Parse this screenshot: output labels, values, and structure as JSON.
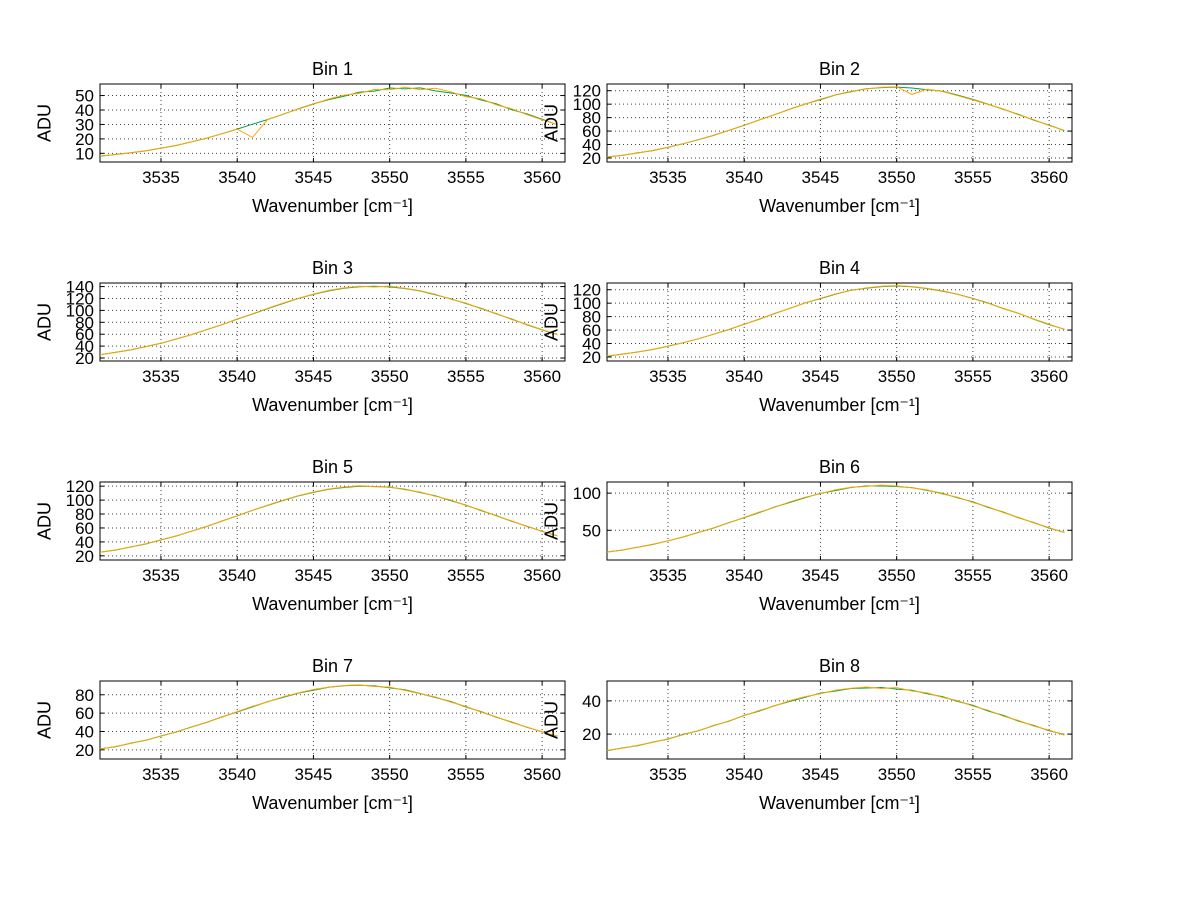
{
  "figure": {
    "background": "#ffffff",
    "grid_style": "dotted",
    "legend": "none"
  },
  "colors": {
    "axis": "#000000",
    "grid": "#444444",
    "trace_green": "#00a344",
    "trace_orange": "#ffa500"
  },
  "x_values": [
    3531,
    3532,
    3533,
    3534,
    3535,
    3536,
    3537,
    3538,
    3539,
    3540,
    3541,
    3542,
    3543,
    3544,
    3545,
    3546,
    3547,
    3548,
    3549,
    3550,
    3551,
    3552,
    3553,
    3554,
    3555,
    3556,
    3557,
    3558,
    3559,
    3560,
    3561
  ],
  "chart_data": [
    {
      "type": "line",
      "title": "Bin 1",
      "xlabel": "Wavenumber [cm⁻¹]",
      "ylabel": "ADU",
      "xlim": [
        3531,
        3561.5
      ],
      "ylim": [
        4,
        58
      ],
      "xticks": [
        3535,
        3540,
        3545,
        3550,
        3555,
        3560
      ],
      "yticks": [
        10,
        20,
        30,
        40,
        50
      ],
      "series": [
        {
          "name": "trace-green",
          "color": "#00a344",
          "values": [
            8.0,
            9.2,
            10.4,
            11.7,
            13.6,
            15.4,
            18.0,
            20.5,
            23.6,
            26.8,
            30.2,
            33.4,
            37.0,
            40.8,
            44.2,
            47.2,
            49.5,
            52.4,
            53.1,
            55.2,
            54.6,
            55.3,
            53.2,
            51.8,
            50.1,
            46.9,
            44.3,
            40.2,
            37.3,
            33.6,
            29.8
          ]
        },
        {
          "name": "trace-orange",
          "color": "#ffa500",
          "values": [
            8.2,
            9.1,
            10.3,
            11.8,
            13.5,
            15.5,
            17.9,
            20.6,
            23.5,
            26.7,
            21.0,
            33.5,
            37.1,
            40.6,
            44.0,
            47.6,
            50.3,
            51.5,
            54.2,
            54.0,
            55.8,
            54.1,
            55.0,
            52.6,
            49.2,
            47.8,
            43.5,
            40.9,
            36.8,
            33.2,
            30.1
          ]
        }
      ]
    },
    {
      "type": "line",
      "title": "Bin 2",
      "xlabel": "Wavenumber [cm⁻¹]",
      "ylabel": "ADU",
      "xlim": [
        3531,
        3561.5
      ],
      "ylim": [
        14,
        130
      ],
      "xticks": [
        3535,
        3540,
        3545,
        3550,
        3555,
        3560
      ],
      "yticks": [
        20,
        40,
        60,
        80,
        100,
        120
      ],
      "series": [
        {
          "name": "trace-green",
          "color": "#00a344",
          "values": [
            21.5,
            23.8,
            27.5,
            31.0,
            36.0,
            41.0,
            47.3,
            53.6,
            61.2,
            68.4,
            76.7,
            84.3,
            92.7,
            100.3,
            106.6,
            113.8,
            118.5,
            123.0,
            124.6,
            125.4,
            124.0,
            121.5,
            119.2,
            113.5,
            107.2,
            100.0,
            92.2,
            84.8,
            76.2,
            68.9,
            60.7
          ]
        },
        {
          "name": "trace-orange",
          "color": "#ffa500",
          "values": [
            21.3,
            24.0,
            27.3,
            31.2,
            35.8,
            41.1,
            47.1,
            53.8,
            61.0,
            68.6,
            76.5,
            84.5,
            92.5,
            100.1,
            107.5,
            114.0,
            119.0,
            122.5,
            125.1,
            126.0,
            114.5,
            122.3,
            118.9,
            112.6,
            106.4,
            99.5,
            92.8,
            84.1,
            76.9,
            68.3,
            61.2
          ]
        }
      ]
    },
    {
      "type": "line",
      "title": "Bin 3",
      "xlabel": "Wavenumber [cm⁻¹]",
      "ylabel": "ADU",
      "xlim": [
        3531,
        3561.5
      ],
      "ylim": [
        15,
        146
      ],
      "xticks": [
        3535,
        3540,
        3545,
        3550,
        3555,
        3560
      ],
      "yticks": [
        20,
        40,
        60,
        80,
        100,
        120,
        140
      ],
      "series": [
        {
          "name": "trace-green",
          "color": "#00a344",
          "values": [
            25.4,
            29.5,
            33.6,
            39.2,
            44.7,
            52.0,
            59.1,
            67.7,
            75.9,
            85.3,
            94.0,
            103.0,
            111.5,
            119.9,
            126.9,
            132.8,
            137.2,
            139.6,
            140.4,
            139.5,
            136.8,
            132.5,
            126.2,
            119.4,
            111.6,
            103.4,
            94.1,
            85.5,
            75.8,
            67.3,
            59.5
          ]
        },
        {
          "name": "trace-orange",
          "color": "#ffa500",
          "values": [
            25.6,
            29.3,
            33.8,
            39.0,
            44.9,
            51.8,
            59.3,
            67.5,
            76.1,
            85.1,
            94.2,
            103.5,
            112.3,
            120.2,
            127.4,
            133.5,
            137.8,
            140.5,
            139.2,
            140.8,
            137.1,
            132.9,
            127.0,
            118.8,
            112.4,
            102.6,
            94.8,
            84.7,
            76.4,
            67.8,
            59.1
          ]
        }
      ]
    },
    {
      "type": "line",
      "title": "Bin 4",
      "xlabel": "Wavenumber [cm⁻¹]",
      "ylabel": "ADU",
      "xlim": [
        3531,
        3561.5
      ],
      "ylim": [
        14,
        130
      ],
      "xticks": [
        3535,
        3540,
        3545,
        3550,
        3555,
        3560
      ],
      "yticks": [
        20,
        40,
        60,
        80,
        100,
        120
      ],
      "series": [
        {
          "name": "trace-green",
          "color": "#00a344",
          "values": [
            21.2,
            24.2,
            27.4,
            31.1,
            36.1,
            41.2,
            47.0,
            53.9,
            60.8,
            68.8,
            76.3,
            84.7,
            92.4,
            100.4,
            106.8,
            113.5,
            119.3,
            122.2,
            124.7,
            125.6,
            124.3,
            121.7,
            118.0,
            113.4,
            107.0,
            100.2,
            92.0,
            84.9,
            76.0,
            68.2,
            61.3
          ]
        },
        {
          "name": "trace-orange",
          "color": "#ffa500",
          "values": [
            21.4,
            24.1,
            27.2,
            31.3,
            35.9,
            41.0,
            47.2,
            53.7,
            61.1,
            68.5,
            76.6,
            84.4,
            92.6,
            100.2,
            107.2,
            113.9,
            118.8,
            122.7,
            125.3,
            126.2,
            124.8,
            122.0,
            118.5,
            113.0,
            106.7,
            99.8,
            92.3,
            84.6,
            76.4,
            68.7,
            60.8
          ]
        }
      ]
    },
    {
      "type": "line",
      "title": "Bin 5",
      "xlabel": "Wavenumber [cm⁻¹]",
      "ylabel": "ADU",
      "xlim": [
        3531,
        3561.5
      ],
      "ylim": [
        14,
        126
      ],
      "xticks": [
        3535,
        3540,
        3545,
        3550,
        3555,
        3560
      ],
      "yticks": [
        20,
        40,
        60,
        80,
        100,
        120
      ],
      "series": [
        {
          "name": "trace-green",
          "color": "#00a344",
          "values": [
            25.2,
            28.2,
            32.7,
            37.0,
            42.9,
            48.4,
            55.4,
            62.1,
            70.0,
            77.3,
            85.4,
            92.4,
            99.4,
            106.1,
            111.0,
            115.7,
            118.1,
            120.0,
            119.6,
            118.5,
            115.6,
            110.9,
            106.2,
            99.3,
            92.8,
            85.0,
            77.7,
            69.6,
            62.5,
            55.0,
            48.8
          ]
        },
        {
          "name": "trace-orange",
          "color": "#ffa500",
          "values": [
            25.0,
            28.4,
            32.5,
            37.2,
            42.7,
            48.6,
            55.2,
            62.3,
            69.8,
            77.5,
            85.2,
            92.8,
            99.9,
            106.3,
            111.6,
            115.9,
            118.8,
            120.5,
            119.3,
            118.9,
            115.0,
            111.7,
            105.4,
            100.1,
            92.2,
            85.6,
            77.2,
            70.1,
            62.0,
            55.4,
            48.4
          ]
        }
      ]
    },
    {
      "type": "line",
      "title": "Bin 6",
      "xlabel": "Wavenumber [cm⁻¹]",
      "ylabel": "ADU",
      "xlim": [
        3531,
        3561.5
      ],
      "ylim": [
        10,
        115
      ],
      "xticks": [
        3535,
        3540,
        3545,
        3550,
        3555,
        3560
      ],
      "yticks": [
        50,
        100
      ],
      "series": [
        {
          "name": "trace-green",
          "color": "#00a344",
          "values": [
            20.8,
            23.3,
            27.2,
            30.9,
            35.9,
            40.9,
            47.2,
            53.1,
            60.3,
            67.0,
            74.0,
            81.4,
            87.6,
            93.8,
            99.8,
            103.6,
            107.6,
            109.6,
            109.8,
            108.9,
            107.5,
            103.7,
            99.7,
            93.7,
            88.2,
            80.8,
            74.5,
            66.8,
            60.4,
            53.0,
            47.3
          ]
        },
        {
          "name": "trace-orange",
          "color": "#ffa500",
          "values": [
            20.6,
            23.5,
            27.0,
            31.1,
            35.7,
            41.1,
            47.0,
            53.3,
            60.1,
            67.3,
            74.6,
            81.0,
            88.3,
            94.5,
            99.2,
            104.6,
            107.9,
            109.0,
            110.8,
            109.6,
            107.0,
            104.4,
            98.9,
            94.6,
            87.4,
            81.6,
            73.8,
            67.4,
            59.8,
            53.6,
            46.8
          ]
        }
      ]
    },
    {
      "type": "line",
      "title": "Bin 7",
      "xlabel": "Wavenumber [cm⁻¹]",
      "ylabel": "ADU",
      "xlim": [
        3531,
        3561.5
      ],
      "ylim": [
        10,
        95
      ],
      "xticks": [
        3535,
        3540,
        3545,
        3550,
        3555,
        3560
      ],
      "yticks": [
        20,
        40,
        60,
        80
      ],
      "series": [
        {
          "name": "trace-green",
          "color": "#00a344",
          "values": [
            21.0,
            23.4,
            27.1,
            30.4,
            35.1,
            39.4,
            44.9,
            49.9,
            55.9,
            61.2,
            66.8,
            72.6,
            77.1,
            81.8,
            85.0,
            88.1,
            89.8,
            90.3,
            89.7,
            87.5,
            85.4,
            81.4,
            77.0,
            72.7,
            66.7,
            61.6,
            55.4,
            50.3,
            44.5,
            39.8,
            34.7
          ]
        },
        {
          "name": "trace-orange",
          "color": "#ffa500",
          "values": [
            20.8,
            23.6,
            26.9,
            30.6,
            34.9,
            39.6,
            44.7,
            50.1,
            55.7,
            61.6,
            67.4,
            72.2,
            77.8,
            82.0,
            85.7,
            88.4,
            90.1,
            90.8,
            89.0,
            88.3,
            84.8,
            81.2,
            77.6,
            72.0,
            67.3,
            61.1,
            55.9,
            49.8,
            44.9,
            39.4,
            35.1
          ]
        }
      ]
    },
    {
      "type": "line",
      "title": "Bin 8",
      "xlabel": "Wavenumber [cm⁻¹]",
      "ylabel": "ADU",
      "xlim": [
        3531,
        3561.5
      ],
      "ylim": [
        5,
        52
      ],
      "xticks": [
        3535,
        3540,
        3545,
        3550,
        3555,
        3560
      ],
      "yticks": [
        20,
        40
      ],
      "series": [
        {
          "name": "trace-green",
          "color": "#00a344",
          "values": [
            10.0,
            11.6,
            13.0,
            15.2,
            17.0,
            19.8,
            22.0,
            25.2,
            27.8,
            31.3,
            33.9,
            37.2,
            39.7,
            42.2,
            44.7,
            46.0,
            47.5,
            47.8,
            48.1,
            47.1,
            46.4,
            44.3,
            42.6,
            39.7,
            37.3,
            33.9,
            31.3,
            27.8,
            25.2,
            22.0,
            19.8
          ]
        },
        {
          "name": "trace-orange",
          "color": "#ffa500",
          "values": [
            10.2,
            11.5,
            13.2,
            15.0,
            17.2,
            19.6,
            22.2,
            25.0,
            28.0,
            31.1,
            34.3,
            37.0,
            40.2,
            42.6,
            44.3,
            46.5,
            47.6,
            48.4,
            47.5,
            48.0,
            46.0,
            44.8,
            42.1,
            40.2,
            36.8,
            34.4,
            30.8,
            28.2,
            24.8,
            22.4,
            19.4
          ]
        }
      ]
    }
  ]
}
